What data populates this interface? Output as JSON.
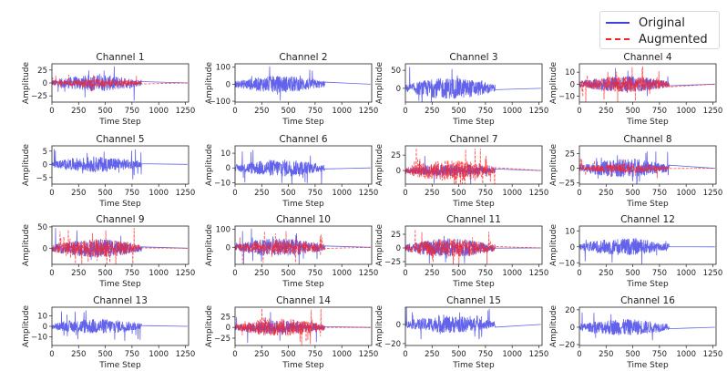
{
  "legend": {
    "original_label": "Original",
    "augmented_label": "Augmented",
    "original_color": "#3b3be6",
    "augmented_color": "#ff1f1f",
    "placement": "top-right"
  },
  "chart_data": {
    "type": "line",
    "layout": "4x4 grid of subplots",
    "xlabel": "Time Step",
    "ylabel": "Amplitude",
    "xlim": [
      0,
      1280
    ],
    "xticks": [
      0,
      250,
      500,
      750,
      1000,
      1250
    ],
    "signal_active_until": 840,
    "series_names": [
      "Original",
      "Augmented"
    ],
    "subplots": [
      {
        "title": "Channel 1",
        "ylim": [
          -37,
          37
        ],
        "yticks": [
          -25,
          0,
          25
        ],
        "orig_peak": 35,
        "aug_peak": 18,
        "augmented_visible": true
      },
      {
        "title": "Channel 2",
        "ylim": [
          -105,
          120
        ],
        "yticks": [
          -100,
          0,
          100
        ],
        "orig_peak": 110,
        "aug_peak": 0,
        "augmented_visible": false
      },
      {
        "title": "Channel 3",
        "ylim": [
          -38,
          68
        ],
        "yticks": [
          0,
          50
        ],
        "orig_peak": 65,
        "aug_peak": 0,
        "augmented_visible": false
      },
      {
        "title": "Channel 4",
        "ylim": [
          -15,
          17
        ],
        "yticks": [
          -10,
          0,
          10
        ],
        "orig_peak": 15,
        "aug_peak": 15,
        "augmented_visible": true
      },
      {
        "title": "Channel 5",
        "ylim": [
          -7.5,
          7
        ],
        "yticks": [
          -5,
          0,
          5
        ],
        "orig_peak": 6.5,
        "aug_peak": 0,
        "augmented_visible": false
      },
      {
        "title": "Channel 6",
        "ylim": [
          -11,
          15
        ],
        "yticks": [
          -10,
          0,
          10
        ],
        "orig_peak": 13,
        "aug_peak": 0,
        "augmented_visible": false
      },
      {
        "title": "Channel 7",
        "ylim": [
          -22,
          40
        ],
        "yticks": [
          0,
          25
        ],
        "orig_peak": 25,
        "aug_peak": 37,
        "augmented_visible": true
      },
      {
        "title": "Channel 8",
        "ylim": [
          -27,
          38
        ],
        "yticks": [
          -25,
          0,
          25
        ],
        "orig_peak": 35,
        "aug_peak": 18,
        "augmented_visible": true
      },
      {
        "title": "Channel 9",
        "ylim": [
          -38,
          52
        ],
        "yticks": [
          0,
          50
        ],
        "orig_peak": 48,
        "aug_peak": 48,
        "augmented_visible": true
      },
      {
        "title": "Channel 10",
        "ylim": [
          -95,
          118
        ],
        "yticks": [
          0,
          100
        ],
        "orig_peak": 110,
        "aug_peak": 90,
        "augmented_visible": true
      },
      {
        "title": "Channel 11",
        "ylim": [
          -30,
          40
        ],
        "yticks": [
          -25,
          0,
          25
        ],
        "orig_peak": 38,
        "aug_peak": 38,
        "augmented_visible": true
      },
      {
        "title": "Channel 12",
        "ylim": [
          -11,
          13
        ],
        "yticks": [
          -10,
          0,
          10
        ],
        "orig_peak": 12,
        "aug_peak": 0,
        "augmented_visible": false
      },
      {
        "title": "Channel 13",
        "ylim": [
          -18,
          18
        ],
        "yticks": [
          -10,
          0,
          10
        ],
        "orig_peak": 16,
        "aug_peak": 0,
        "augmented_visible": false
      },
      {
        "title": "Channel 14",
        "ylim": [
          -42,
          47
        ],
        "yticks": [
          -25,
          0,
          25
        ],
        "orig_peak": 38,
        "aug_peak": 45,
        "augmented_visible": true
      },
      {
        "title": "Channel 15",
        "ylim": [
          -22,
          18
        ],
        "yticks": [
          -20,
          0
        ],
        "orig_peak": 20,
        "aug_peak": 0,
        "augmented_visible": false
      },
      {
        "title": "Channel 16",
        "ylim": [
          -21,
          23
        ],
        "yticks": [
          -20,
          0,
          20
        ],
        "orig_peak": 21,
        "aug_peak": 0,
        "augmented_visible": false
      }
    ]
  }
}
